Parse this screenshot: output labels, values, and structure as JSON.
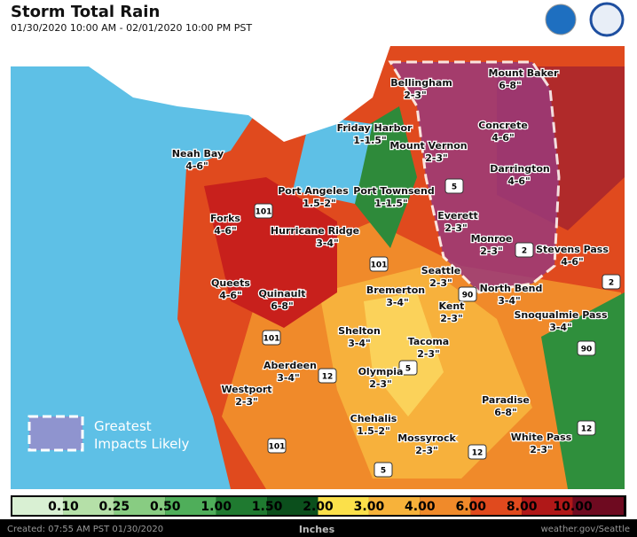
{
  "header": {
    "title": "Storm Total Rain",
    "subtitle": "01/30/2020 10:00 AM - 02/01/2020 10:00 PM PST"
  },
  "places": [
    {
      "name": "Bellingham",
      "amount": "2-3\""
    },
    {
      "name": "Mount Baker",
      "amount": "6-8\""
    },
    {
      "name": "Friday Harbor",
      "amount": "1-1.5\""
    },
    {
      "name": "Mount Vernon",
      "amount": "2-3\""
    },
    {
      "name": "Concrete",
      "amount": "4-6\""
    },
    {
      "name": "Neah Bay",
      "amount": "4-6\""
    },
    {
      "name": "Darrington",
      "amount": "4-6\""
    },
    {
      "name": "Port Angeles",
      "amount": "1.5-2\""
    },
    {
      "name": "Port Townsend",
      "amount": "1-1.5\""
    },
    {
      "name": "Everett",
      "amount": "2-3\""
    },
    {
      "name": "Forks",
      "amount": "4-6\""
    },
    {
      "name": "Hurricane Ridge",
      "amount": "3-4\""
    },
    {
      "name": "Monroe",
      "amount": "2-3\""
    },
    {
      "name": "Stevens Pass",
      "amount": "4-6\""
    },
    {
      "name": "Seattle",
      "amount": "2-3\""
    },
    {
      "name": "Queets",
      "amount": "4-6\""
    },
    {
      "name": "Quinault",
      "amount": "6-8\""
    },
    {
      "name": "Bremerton",
      "amount": "3-4\""
    },
    {
      "name": "North Bend",
      "amount": "3-4\""
    },
    {
      "name": "Kent",
      "amount": "2-3\""
    },
    {
      "name": "Snoqualmie Pass",
      "amount": "3-4\""
    },
    {
      "name": "Shelton",
      "amount": "3-4\""
    },
    {
      "name": "Tacoma",
      "amount": "2-3\""
    },
    {
      "name": "Aberdeen",
      "amount": "3-4\""
    },
    {
      "name": "Olympia",
      "amount": "2-3\""
    },
    {
      "name": "Westport",
      "amount": "2-3\""
    },
    {
      "name": "Paradise",
      "amount": "6-8\""
    },
    {
      "name": "Chehalis",
      "amount": "1.5-2\""
    },
    {
      "name": "Mossyrock",
      "amount": "2-3\""
    },
    {
      "name": "White Pass",
      "amount": "2-3\""
    }
  ],
  "legend": {
    "line1": "Greatest",
    "line2": "Impacts Likely"
  },
  "colorbar": {
    "labels": [
      "0.10",
      "0.25",
      "0.50",
      "1.00",
      "1.50",
      "2.00",
      "3.00",
      "4.00",
      "6.00",
      "8.00",
      "10.00"
    ],
    "unit": "Inches"
  },
  "highways": [
    "101",
    "101",
    "101",
    "101",
    "5",
    "5",
    "5",
    "90",
    "90",
    "12",
    "12",
    "12",
    "2",
    "2"
  ],
  "footer": {
    "created": "Created: 07:55 AM PST 01/30/2020",
    "site": "weather.gov/Seattle"
  }
}
